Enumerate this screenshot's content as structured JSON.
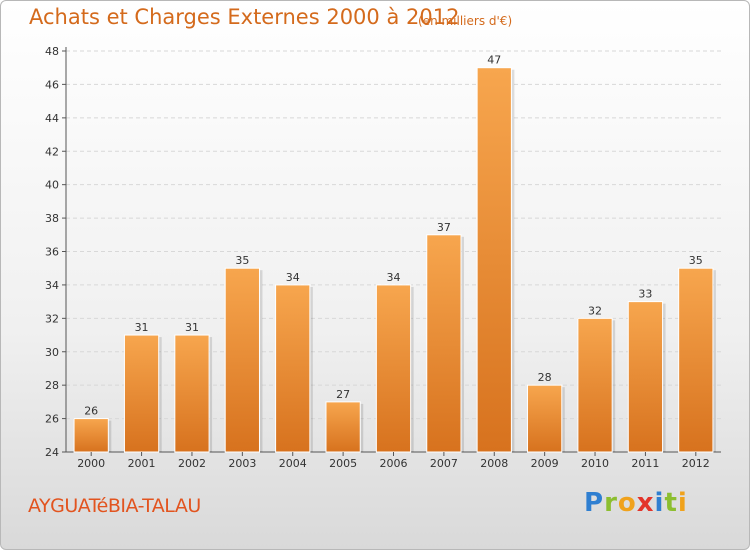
{
  "header": {
    "title": "Achats et Charges Externes 2000 à 2012",
    "subtitle": "(en milliers d'€)"
  },
  "footer": {
    "commune": "AYGUATéBIA-TALAU",
    "logo_letters": [
      {
        "ch": "P",
        "color": "#2f7fd1"
      },
      {
        "ch": "r",
        "color": "#8cbe2f"
      },
      {
        "ch": "o",
        "color": "#f0a21c"
      },
      {
        "ch": "x",
        "color": "#e3342a"
      },
      {
        "ch": "i",
        "color": "#2f7fd1"
      },
      {
        "ch": "t",
        "color": "#8cbe2f"
      },
      {
        "ch": "i",
        "color": "#f0a21c"
      }
    ]
  },
  "colors": {
    "bar_light": "#f7a64e",
    "bar_dark": "#d7721e",
    "title": "#d46a1c",
    "commune": "#e2541f"
  },
  "chart_data": {
    "type": "bar",
    "categories": [
      "2000",
      "2001",
      "2002",
      "2003",
      "2004",
      "2005",
      "2006",
      "2007",
      "2008",
      "2009",
      "2010",
      "2011",
      "2012"
    ],
    "values": [
      26,
      31,
      31,
      35,
      34,
      27,
      34,
      37,
      47,
      28,
      32,
      33,
      35
    ],
    "ylim": [
      24,
      48
    ],
    "yticks": [
      24,
      26,
      28,
      30,
      32,
      34,
      36,
      38,
      40,
      42,
      44,
      46,
      48
    ],
    "grid": true,
    "legend": "none"
  }
}
